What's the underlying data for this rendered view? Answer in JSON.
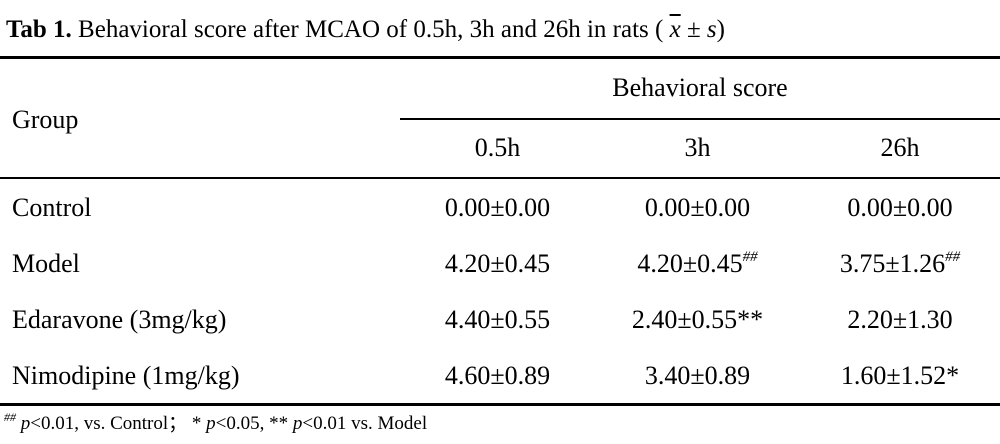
{
  "caption": {
    "lead": "Tab 1.",
    "text": " Behavioral score after MCAO of 0.5h, 3h and 26h in rats (",
    "xbar": "x",
    "pm": " ± ",
    "s": "s",
    "close": ")"
  },
  "table": {
    "group_header": "Group",
    "span_header": "Behavioral score",
    "columns": [
      "0.5h",
      "3h",
      "26h"
    ],
    "rows": [
      {
        "group": "Control",
        "cells": [
          {
            "value": "0.00±0.00",
            "mark": ""
          },
          {
            "value": "0.00±0.00",
            "mark": ""
          },
          {
            "value": "0.00±0.00",
            "mark": ""
          }
        ]
      },
      {
        "group": "Model",
        "cells": [
          {
            "value": "4.20±0.45",
            "mark": ""
          },
          {
            "value": "4.20±0.45",
            "mark": "##"
          },
          {
            "value": "3.75±1.26",
            "mark": "##"
          }
        ]
      },
      {
        "group": "Edaravone (3mg/kg)",
        "cells": [
          {
            "value": "4.40±0.55",
            "mark": ""
          },
          {
            "value": "2.40±0.55**",
            "mark": ""
          },
          {
            "value": "2.20±1.30",
            "mark": ""
          }
        ]
      },
      {
        "group": "Nimodipine (1mg/kg)",
        "cells": [
          {
            "value": "4.60±0.89",
            "mark": ""
          },
          {
            "value": "3.40±0.89",
            "mark": ""
          },
          {
            "value": "1.60±1.52*",
            "mark": ""
          }
        ]
      }
    ]
  },
  "footnote": {
    "mark": "##",
    "p1": "p",
    "t1": "<0.01, vs. Control； * ",
    "p2": "p",
    "t2": "<0.05, ** ",
    "p3": "p",
    "t3": "<0.01 vs. Model"
  }
}
